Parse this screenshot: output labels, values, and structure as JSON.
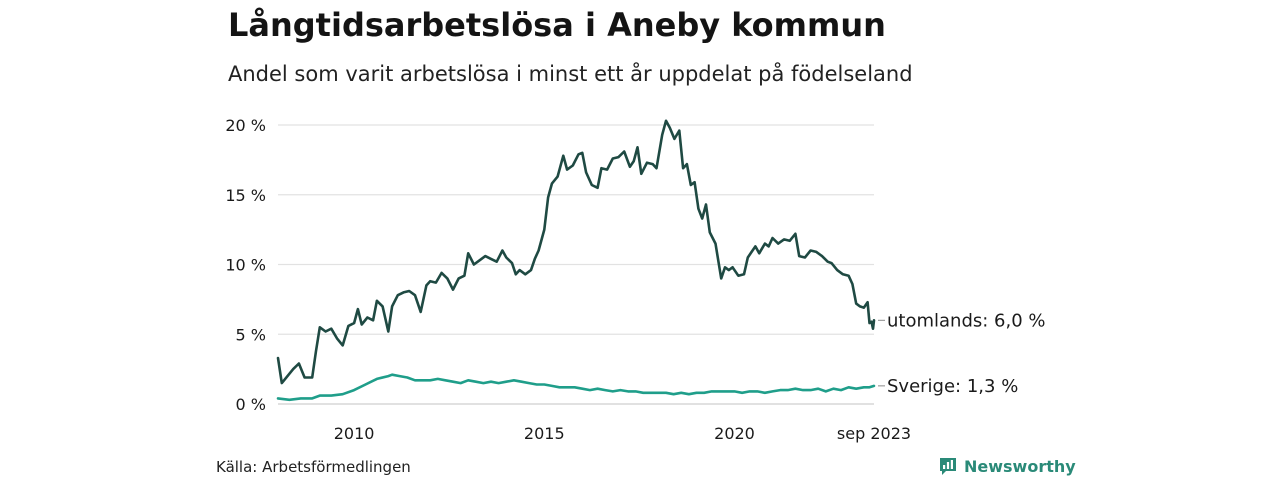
{
  "header": {
    "title": "Långtidsarbetslösa i Aneby kommun",
    "subtitle": "Andel som varit arbetslösa i minst ett år uppdelat på födelseland"
  },
  "footer": {
    "source": "Källa: Arbetsförmedlingen",
    "brand": "Newsworthy"
  },
  "chart_data": {
    "type": "line",
    "title": "Långtidsarbetslösa i Aneby kommun",
    "subtitle": "Andel som varit arbetslösa i minst ett år uppdelat på födelseland",
    "xlabel": "",
    "ylabel": "",
    "x_range": [
      2008.0,
      2023.667
    ],
    "ylim": [
      0,
      20
    ],
    "y_ticks": [
      {
        "value": 0,
        "label": "0 %"
      },
      {
        "value": 5,
        "label": "5 %"
      },
      {
        "value": 10,
        "label": "10 %"
      },
      {
        "value": 15,
        "label": "15 %"
      },
      {
        "value": 20,
        "label": "20 %"
      }
    ],
    "x_ticks": [
      {
        "value": 2010,
        "label": "2010"
      },
      {
        "value": 2015,
        "label": "2015"
      },
      {
        "value": 2020,
        "label": "2020"
      },
      {
        "value": 2023.667,
        "label": "sep 2023"
      }
    ],
    "grid": true,
    "series": [
      {
        "name": "utomlands",
        "label": "utomlands: 6,0 %",
        "color": "#1f4a43",
        "points": [
          [
            2008.0,
            3.3
          ],
          [
            2008.1,
            1.5
          ],
          [
            2008.25,
            2.0
          ],
          [
            2008.4,
            2.5
          ],
          [
            2008.55,
            2.9
          ],
          [
            2008.7,
            1.9
          ],
          [
            2008.9,
            1.9
          ],
          [
            2009.0,
            3.8
          ],
          [
            2009.1,
            5.5
          ],
          [
            2009.25,
            5.2
          ],
          [
            2009.4,
            5.4
          ],
          [
            2009.55,
            4.7
          ],
          [
            2009.7,
            4.2
          ],
          [
            2009.85,
            5.6
          ],
          [
            2010.0,
            5.8
          ],
          [
            2010.1,
            6.8
          ],
          [
            2010.2,
            5.7
          ],
          [
            2010.35,
            6.2
          ],
          [
            2010.5,
            6.0
          ],
          [
            2010.6,
            7.4
          ],
          [
            2010.75,
            7.0
          ],
          [
            2010.9,
            5.2
          ],
          [
            2011.0,
            7.0
          ],
          [
            2011.15,
            7.8
          ],
          [
            2011.3,
            8.0
          ],
          [
            2011.45,
            8.1
          ],
          [
            2011.6,
            7.8
          ],
          [
            2011.75,
            6.6
          ],
          [
            2011.9,
            8.5
          ],
          [
            2012.0,
            8.8
          ],
          [
            2012.15,
            8.7
          ],
          [
            2012.3,
            9.4
          ],
          [
            2012.45,
            9.0
          ],
          [
            2012.6,
            8.2
          ],
          [
            2012.75,
            9.0
          ],
          [
            2012.9,
            9.2
          ],
          [
            2013.0,
            10.8
          ],
          [
            2013.15,
            10.0
          ],
          [
            2013.3,
            10.3
          ],
          [
            2013.45,
            10.6
          ],
          [
            2013.6,
            10.4
          ],
          [
            2013.75,
            10.2
          ],
          [
            2013.9,
            11.0
          ],
          [
            2014.0,
            10.5
          ],
          [
            2014.15,
            10.1
          ],
          [
            2014.25,
            9.3
          ],
          [
            2014.35,
            9.6
          ],
          [
            2014.5,
            9.3
          ],
          [
            2014.65,
            9.6
          ],
          [
            2014.75,
            10.4
          ],
          [
            2014.85,
            11.0
          ],
          [
            2015.0,
            12.5
          ],
          [
            2015.1,
            14.8
          ],
          [
            2015.2,
            15.8
          ],
          [
            2015.35,
            16.3
          ],
          [
            2015.5,
            17.8
          ],
          [
            2015.6,
            16.8
          ],
          [
            2015.75,
            17.1
          ],
          [
            2015.9,
            17.9
          ],
          [
            2016.0,
            18.0
          ],
          [
            2016.1,
            16.6
          ],
          [
            2016.25,
            15.7
          ],
          [
            2016.4,
            15.5
          ],
          [
            2016.5,
            16.9
          ],
          [
            2016.65,
            16.8
          ],
          [
            2016.8,
            17.6
          ],
          [
            2016.95,
            17.7
          ],
          [
            2017.1,
            18.1
          ],
          [
            2017.25,
            17.0
          ],
          [
            2017.35,
            17.4
          ],
          [
            2017.45,
            18.4
          ],
          [
            2017.55,
            16.5
          ],
          [
            2017.7,
            17.3
          ],
          [
            2017.85,
            17.2
          ],
          [
            2017.95,
            16.9
          ],
          [
            2018.1,
            19.3
          ],
          [
            2018.2,
            20.3
          ],
          [
            2018.3,
            19.8
          ],
          [
            2018.42,
            19.0
          ],
          [
            2018.55,
            19.6
          ],
          [
            2018.65,
            16.9
          ],
          [
            2018.75,
            17.2
          ],
          [
            2018.85,
            15.7
          ],
          [
            2018.95,
            15.9
          ],
          [
            2019.05,
            14.0
          ],
          [
            2019.15,
            13.3
          ],
          [
            2019.25,
            14.3
          ],
          [
            2019.35,
            12.3
          ],
          [
            2019.5,
            11.5
          ],
          [
            2019.65,
            9.0
          ],
          [
            2019.75,
            9.8
          ],
          [
            2019.85,
            9.6
          ],
          [
            2019.95,
            9.8
          ],
          [
            2020.1,
            9.2
          ],
          [
            2020.25,
            9.3
          ],
          [
            2020.35,
            10.5
          ],
          [
            2020.45,
            10.9
          ],
          [
            2020.55,
            11.3
          ],
          [
            2020.65,
            10.8
          ],
          [
            2020.8,
            11.5
          ],
          [
            2020.9,
            11.3
          ],
          [
            2021.0,
            11.9
          ],
          [
            2021.15,
            11.5
          ],
          [
            2021.3,
            11.8
          ],
          [
            2021.45,
            11.7
          ],
          [
            2021.6,
            12.2
          ],
          [
            2021.7,
            10.6
          ],
          [
            2021.85,
            10.5
          ],
          [
            2022.0,
            11.0
          ],
          [
            2022.15,
            10.9
          ],
          [
            2022.3,
            10.6
          ],
          [
            2022.45,
            10.2
          ],
          [
            2022.55,
            10.1
          ],
          [
            2022.7,
            9.6
          ],
          [
            2022.85,
            9.3
          ],
          [
            2023.0,
            9.2
          ],
          [
            2023.1,
            8.6
          ],
          [
            2023.2,
            7.2
          ],
          [
            2023.3,
            7.0
          ],
          [
            2023.4,
            6.9
          ],
          [
            2023.5,
            7.3
          ],
          [
            2023.55,
            5.8
          ],
          [
            2023.6,
            5.9
          ],
          [
            2023.64,
            5.4
          ],
          [
            2023.667,
            6.0
          ]
        ]
      },
      {
        "name": "Sverige",
        "label": "Sverige: 1,3 %",
        "color": "#1f9e8a",
        "points": [
          [
            2008.0,
            0.4
          ],
          [
            2008.3,
            0.3
          ],
          [
            2008.6,
            0.4
          ],
          [
            2008.9,
            0.4
          ],
          [
            2009.1,
            0.6
          ],
          [
            2009.4,
            0.6
          ],
          [
            2009.7,
            0.7
          ],
          [
            2010.0,
            1.0
          ],
          [
            2010.3,
            1.4
          ],
          [
            2010.6,
            1.8
          ],
          [
            2010.9,
            2.0
          ],
          [
            2011.0,
            2.1
          ],
          [
            2011.2,
            2.0
          ],
          [
            2011.4,
            1.9
          ],
          [
            2011.6,
            1.7
          ],
          [
            2011.8,
            1.7
          ],
          [
            2012.0,
            1.7
          ],
          [
            2012.2,
            1.8
          ],
          [
            2012.4,
            1.7
          ],
          [
            2012.6,
            1.6
          ],
          [
            2012.8,
            1.5
          ],
          [
            2013.0,
            1.7
          ],
          [
            2013.2,
            1.6
          ],
          [
            2013.4,
            1.5
          ],
          [
            2013.6,
            1.6
          ],
          [
            2013.8,
            1.5
          ],
          [
            2014.0,
            1.6
          ],
          [
            2014.2,
            1.7
          ],
          [
            2014.4,
            1.6
          ],
          [
            2014.6,
            1.5
          ],
          [
            2014.8,
            1.4
          ],
          [
            2015.0,
            1.4
          ],
          [
            2015.2,
            1.3
          ],
          [
            2015.4,
            1.2
          ],
          [
            2015.6,
            1.2
          ],
          [
            2015.8,
            1.2
          ],
          [
            2016.0,
            1.1
          ],
          [
            2016.2,
            1.0
          ],
          [
            2016.4,
            1.1
          ],
          [
            2016.6,
            1.0
          ],
          [
            2016.8,
            0.9
          ],
          [
            2017.0,
            1.0
          ],
          [
            2017.2,
            0.9
          ],
          [
            2017.4,
            0.9
          ],
          [
            2017.6,
            0.8
          ],
          [
            2017.8,
            0.8
          ],
          [
            2018.0,
            0.8
          ],
          [
            2018.2,
            0.8
          ],
          [
            2018.4,
            0.7
          ],
          [
            2018.6,
            0.8
          ],
          [
            2018.8,
            0.7
          ],
          [
            2019.0,
            0.8
          ],
          [
            2019.2,
            0.8
          ],
          [
            2019.4,
            0.9
          ],
          [
            2019.6,
            0.9
          ],
          [
            2019.8,
            0.9
          ],
          [
            2020.0,
            0.9
          ],
          [
            2020.2,
            0.8
          ],
          [
            2020.4,
            0.9
          ],
          [
            2020.6,
            0.9
          ],
          [
            2020.8,
            0.8
          ],
          [
            2021.0,
            0.9
          ],
          [
            2021.2,
            1.0
          ],
          [
            2021.4,
            1.0
          ],
          [
            2021.6,
            1.1
          ],
          [
            2021.8,
            1.0
          ],
          [
            2022.0,
            1.0
          ],
          [
            2022.2,
            1.1
          ],
          [
            2022.4,
            0.9
          ],
          [
            2022.6,
            1.1
          ],
          [
            2022.8,
            1.0
          ],
          [
            2023.0,
            1.2
          ],
          [
            2023.2,
            1.1
          ],
          [
            2023.4,
            1.2
          ],
          [
            2023.55,
            1.2
          ],
          [
            2023.667,
            1.3
          ]
        ]
      }
    ]
  }
}
